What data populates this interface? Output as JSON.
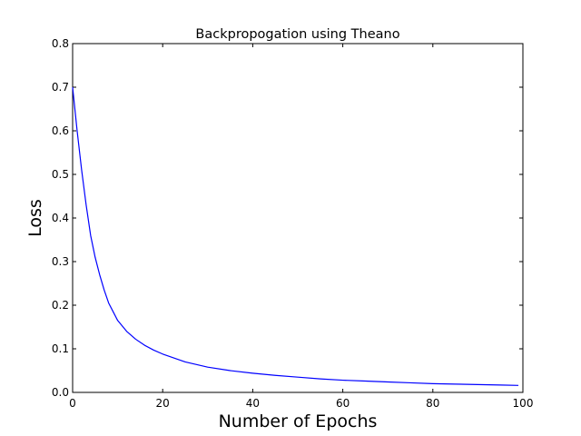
{
  "chart_data": {
    "type": "line",
    "title": "Backpropogation using Theano",
    "xlabel": "Number of Epochs",
    "ylabel": "Loss",
    "xlim": [
      0,
      100
    ],
    "ylim": [
      0,
      0.8
    ],
    "xticks": [
      0,
      20,
      40,
      60,
      80,
      100
    ],
    "yticks": [
      0.0,
      0.1,
      0.2,
      0.3,
      0.4,
      0.5,
      0.6,
      0.7,
      0.8
    ],
    "xtick_labels": [
      "0",
      "20",
      "40",
      "60",
      "80",
      "100"
    ],
    "ytick_labels": [
      "0.0",
      "0.1",
      "0.2",
      "0.3",
      "0.4",
      "0.5",
      "0.6",
      "0.7",
      "0.8"
    ],
    "grid": false,
    "series": [
      {
        "color": "#0000ff",
        "x": [
          0,
          1,
          2,
          3,
          4,
          5,
          6,
          7,
          8,
          9,
          10,
          12,
          14,
          16,
          18,
          20,
          25,
          30,
          35,
          40,
          45,
          50,
          55,
          60,
          65,
          70,
          75,
          80,
          85,
          90,
          95,
          99
        ],
        "y": [
          0.7,
          0.6,
          0.51,
          0.43,
          0.36,
          0.31,
          0.27,
          0.235,
          0.205,
          0.185,
          0.165,
          0.14,
          0.122,
          0.108,
          0.097,
          0.088,
          0.07,
          0.058,
          0.05,
          0.044,
          0.039,
          0.035,
          0.031,
          0.028,
          0.026,
          0.024,
          0.022,
          0.02,
          0.019,
          0.018,
          0.017,
          0.016
        ]
      }
    ]
  }
}
